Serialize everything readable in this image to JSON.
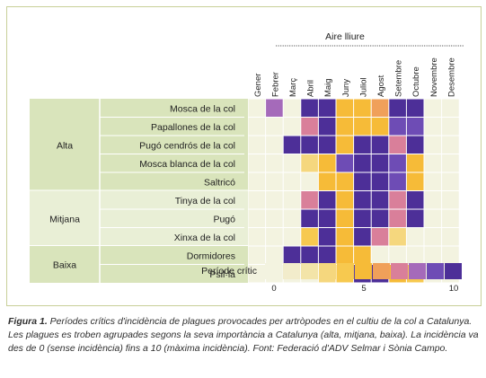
{
  "chart_data": {
    "type": "heatmap",
    "column_group": "Aire lliure",
    "months": [
      "Gener",
      "Febrer",
      "Març",
      "Abril",
      "Maig",
      "Juny",
      "Juliol",
      "Agost",
      "Setembre",
      "Octubre",
      "Novembre",
      "Desembre"
    ],
    "groups": [
      {
        "name": "Alta",
        "rows": [
          "Mosca de la col",
          "Papallones de la col",
          "Pugó cendrós de la col",
          "Mosca blanca de la col",
          "Saltricó"
        ]
      },
      {
        "name": "Mitjana",
        "rows": [
          "Tinya de la col",
          "Pugó",
          "Xinxa de la col"
        ]
      },
      {
        "name": "Baixa",
        "rows": [
          "Dormidores",
          "Psil·la"
        ]
      }
    ],
    "values": [
      [
        0,
        8,
        0,
        10,
        10,
        5,
        5,
        6,
        10,
        10,
        0,
        0
      ],
      [
        0,
        0,
        0,
        7,
        10,
        5,
        5,
        5,
        9,
        9,
        0,
        0
      ],
      [
        0,
        0,
        10,
        10,
        10,
        5,
        10,
        10,
        7,
        10,
        0,
        0
      ],
      [
        0,
        0,
        0,
        3,
        5,
        9,
        10,
        10,
        9,
        5,
        0,
        0
      ],
      [
        0,
        0,
        0,
        0,
        5,
        5,
        10,
        10,
        9,
        5,
        0,
        0
      ],
      [
        0,
        0,
        0,
        7,
        10,
        5,
        10,
        10,
        7,
        10,
        0,
        0
      ],
      [
        0,
        0,
        0,
        10,
        10,
        5,
        10,
        10,
        7,
        10,
        0,
        0
      ],
      [
        0,
        0,
        0,
        4,
        10,
        5,
        10,
        7,
        3,
        0,
        0,
        0
      ],
      [
        0,
        0,
        10,
        10,
        10,
        5,
        5,
        0,
        0,
        0,
        0,
        0
      ],
      [
        0,
        0,
        0,
        0,
        3,
        4,
        10,
        10,
        5,
        4,
        0,
        0
      ]
    ],
    "scale": {
      "label": "Període crític",
      "min": 0,
      "max": 10,
      "ticks": [
        0,
        5,
        10
      ],
      "colors": [
        "#f3f3e0",
        "#f2eccb",
        "#f3e4a8",
        "#f5d77e",
        "#f7c94f",
        "#f6bb38",
        "#f0a05a",
        "#d97f9a",
        "#a56aba",
        "#6e4cb5",
        "#4d2f98"
      ]
    },
    "background": "#f3f3e0",
    "row_band": "#d9e4bb"
  },
  "caption": {
    "label": "Figura 1.",
    "text": " Períodes crítics d'incidència de plagues provocades per artròpodes en el cultiu de la col a Catalunya. Les plagues es troben agrupades segons la seva importància a Catalunya (alta, mitjana, baixa). La incidència va des de 0 (sense incidència) fins a 10 (màxima incidència). Font: Federació d'ADV Selmar i Sònia Campo."
  }
}
